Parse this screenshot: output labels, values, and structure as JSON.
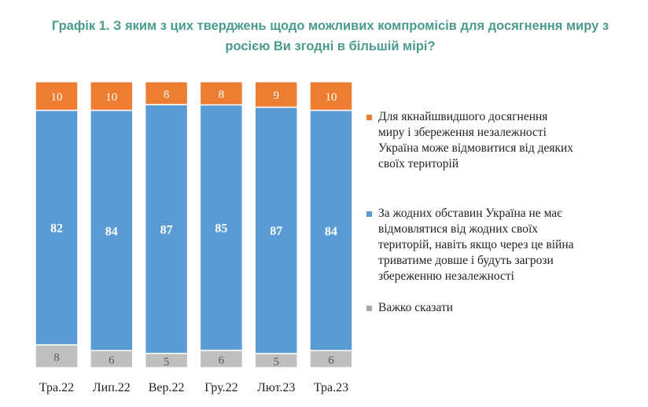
{
  "title_lines": [
    "Графік 1. З яким з цих тверджень щодо можливих компромісів для досягнення миру з",
    "росією Ви згодні в більшій мірі?"
  ],
  "chart_data": {
    "type": "bar",
    "stacked": true,
    "percent_stacked": true,
    "categories": [
      "Тра.22",
      "Лип.22",
      "Вер.22",
      "Гру.22",
      "Лют.23",
      "Тра.23"
    ],
    "series": [
      {
        "name": "Важко сказати",
        "color": "#bfbfbf",
        "values": [
          8,
          6,
          5,
          6,
          5,
          6
        ]
      },
      {
        "name": "За жодних обставин Україна не має\nвідмовлятися від жодних своїх\nтериторій, навіть якщо через це війна\nтриватиме довше і будуть загрози\nзбереженню незалежності",
        "color": "#5b9bd5",
        "values": [
          82,
          84,
          87,
          85,
          87,
          84
        ]
      },
      {
        "name": "Для якнайшвидшого досягнення\nмиру і збереження незалежності\nУкраїна може відмовитися від деяких\nсвоїх територій",
        "color": "#ed7d31",
        "values": [
          10,
          10,
          8,
          8,
          9,
          10
        ]
      }
    ],
    "legend_position": "right",
    "grid": false
  }
}
